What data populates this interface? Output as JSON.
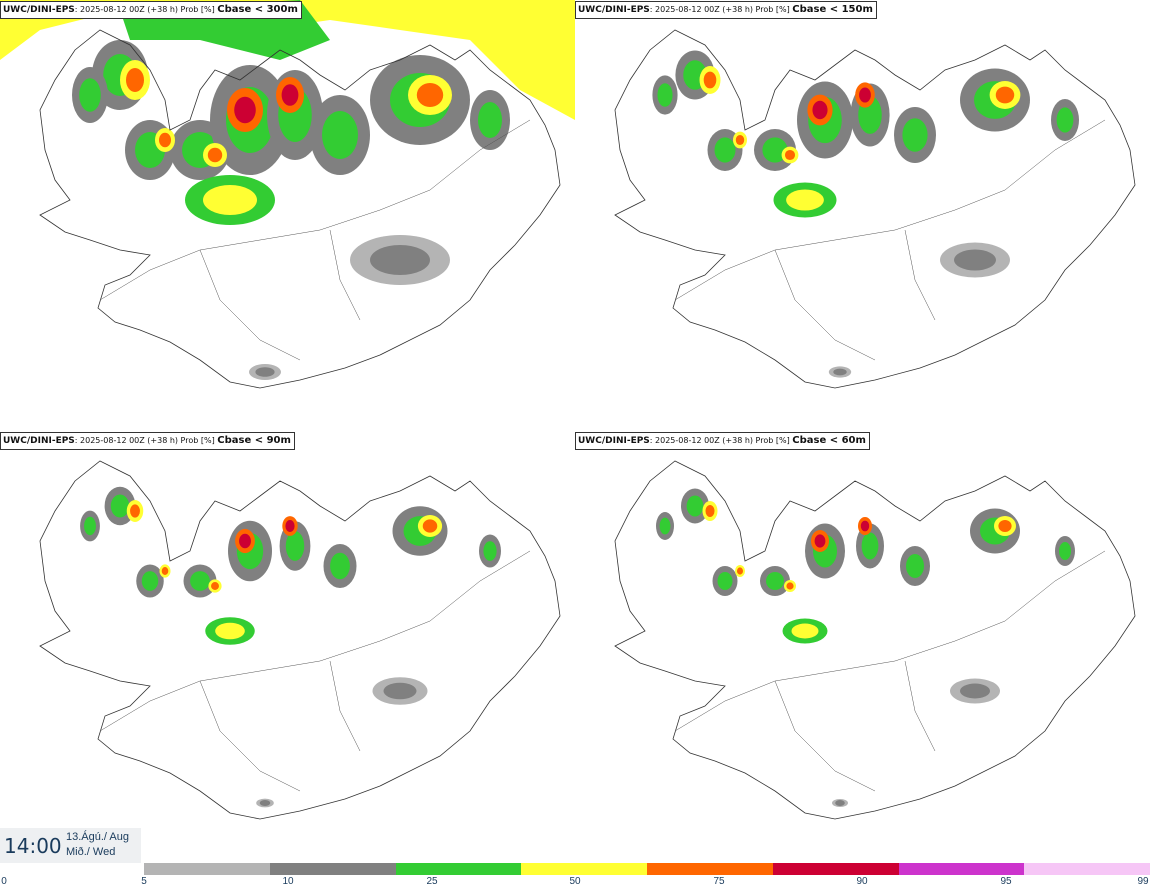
{
  "panels": [
    {
      "model": "UWC/DINI-EPS",
      "run": ": 2025-08-12 00Z (+38 h) Prob [%]",
      "variable": "Cbase < 300m",
      "intensity": 1.0
    },
    {
      "model": "UWC/DINI-EPS",
      "run": ": 2025-08-12 00Z (+38 h) Prob [%]",
      "variable": "Cbase < 150m",
      "intensity": 0.7
    },
    {
      "model": "UWC/DINI-EPS",
      "run": ": 2025-08-12 00Z (+38 h) Prob [%]",
      "variable": "Cbase < 90m",
      "intensity": 0.55
    },
    {
      "model": "UWC/DINI-EPS",
      "run": ": 2025-08-12 00Z (+38 h) Prob [%]",
      "variable": "Cbase < 60m",
      "intensity": 0.5
    }
  ],
  "valid_time": {
    "time": "14:00",
    "date_line1": "13.Ágú./ Aug",
    "date_line2": "Mið./ Wed"
  },
  "legend": {
    "ticks": [
      "0",
      "5",
      "10",
      "25",
      "50",
      "75",
      "90",
      "95",
      "99"
    ],
    "colors": [
      "#b4b4b4",
      "#808080",
      "#33cc33",
      "#ffff33",
      "#ff6600",
      "#cc0033",
      "#cc33cc",
      "#f6c6f6"
    ]
  }
}
